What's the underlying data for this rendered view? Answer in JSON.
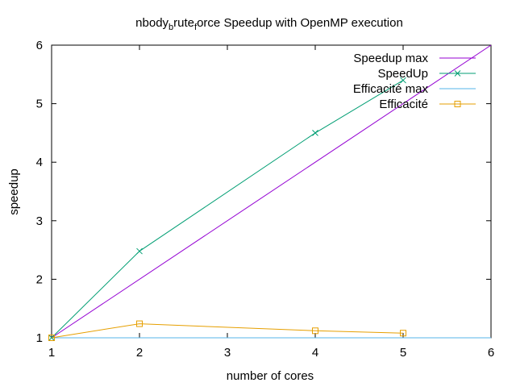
{
  "chart_data": {
    "type": "line",
    "title": {
      "parts": [
        {
          "text": "nbody",
          "sub": false
        },
        {
          "text": "b",
          "sub": true
        },
        {
          "text": "rute",
          "sub": false
        },
        {
          "text": "f",
          "sub": true
        },
        {
          "text": "orce Speedup with OpenMP execution",
          "sub": false
        }
      ]
    },
    "xlabel": "number of cores",
    "ylabel": "speedup",
    "xlim": [
      1,
      6
    ],
    "ylim": [
      1,
      6
    ],
    "xticks": [
      1,
      2,
      3,
      4,
      5,
      6
    ],
    "yticks": [
      1,
      2,
      3,
      4,
      5,
      6
    ],
    "grid": false,
    "legend_position": "top-right",
    "series": [
      {
        "name": "Speedup max",
        "color": "#9400d3",
        "marker": "none",
        "x": [
          1,
          6
        ],
        "y": [
          1,
          6
        ]
      },
      {
        "name": "SpeedUp",
        "color": "#009e73",
        "marker": "x",
        "x": [
          1,
          2,
          4,
          5
        ],
        "y": [
          1.0,
          2.48,
          4.5,
          5.4
        ]
      },
      {
        "name": "Efficacité max",
        "color": "#56b4e9",
        "marker": "none",
        "x": [
          1,
          6
        ],
        "y": [
          1,
          1
        ]
      },
      {
        "name": "Efficacité",
        "color": "#e69f00",
        "marker": "square",
        "x": [
          1,
          2,
          4,
          5
        ],
        "y": [
          1.0,
          1.24,
          1.12,
          1.08
        ]
      }
    ]
  }
}
